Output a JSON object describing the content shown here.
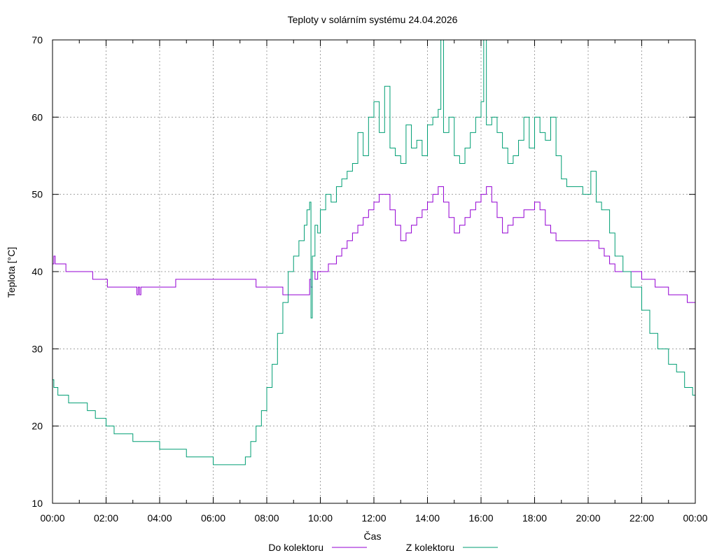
{
  "chart_data": {
    "type": "line",
    "title": "Teploty v solárním systému 24.04.2026",
    "xlabel": "Čas",
    "ylabel": "Teplota [°C]",
    "xlim": [
      0,
      24
    ],
    "ylim": [
      10,
      70
    ],
    "x_ticks": [
      {
        "value": 0,
        "label": "00:00"
      },
      {
        "value": 2,
        "label": "02:00"
      },
      {
        "value": 4,
        "label": "04:00"
      },
      {
        "value": 6,
        "label": "06:00"
      },
      {
        "value": 8,
        "label": "08:00"
      },
      {
        "value": 10,
        "label": "10:00"
      },
      {
        "value": 12,
        "label": "12:00"
      },
      {
        "value": 14,
        "label": "14:00"
      },
      {
        "value": 16,
        "label": "16:00"
      },
      {
        "value": 18,
        "label": "18:00"
      },
      {
        "value": 20,
        "label": "20:00"
      },
      {
        "value": 22,
        "label": "22:00"
      },
      {
        "value": 24,
        "label": "00:00"
      }
    ],
    "y_ticks": [
      10,
      20,
      30,
      40,
      50,
      60,
      70
    ],
    "grid": true,
    "legend_position": "bottom",
    "series": [
      {
        "name": "Do kolektoru",
        "color": "#9400d3",
        "x": [
          0,
          0.05,
          0.1,
          0.4,
          0.5,
          1.4,
          1.5,
          2.0,
          2.05,
          3.1,
          3.15,
          3.2,
          3.25,
          3.3,
          3.35,
          4.5,
          4.6,
          5.0,
          7.5,
          7.6,
          8.5,
          8.6,
          9.5,
          9.6,
          9.65,
          9.7,
          9.8,
          9.9,
          10.0,
          10.3,
          10.6,
          10.8,
          11.0,
          11.2,
          11.4,
          11.6,
          11.8,
          12.0,
          12.2,
          12.4,
          12.6,
          12.8,
          13.0,
          13.2,
          13.4,
          13.6,
          13.8,
          14.0,
          14.2,
          14.4,
          14.6,
          14.8,
          15.0,
          15.2,
          15.4,
          15.6,
          15.8,
          16.0,
          16.2,
          16.4,
          16.6,
          16.8,
          17.0,
          17.2,
          17.4,
          17.6,
          17.8,
          18.0,
          18.2,
          18.4,
          18.6,
          18.8,
          19.0,
          19.5,
          20.0,
          20.2,
          20.4,
          20.6,
          20.8,
          21.0,
          21.5,
          22.0,
          22.5,
          23.0,
          23.5,
          23.7,
          24.0
        ],
        "y": [
          41,
          42,
          41,
          41,
          40,
          40,
          39,
          39,
          38,
          38,
          37,
          38,
          37,
          38,
          38,
          38,
          39,
          39,
          39,
          38,
          38,
          37,
          37,
          39,
          38,
          40,
          39,
          40,
          40,
          41,
          42,
          43,
          44,
          45,
          46,
          47,
          48,
          49,
          50,
          50,
          48,
          46,
          44,
          45,
          46,
          47,
          48,
          49,
          50,
          51,
          49,
          47,
          45,
          46,
          47,
          48,
          49,
          50,
          51,
          49,
          47,
          45,
          46,
          47,
          47,
          48,
          48,
          49,
          48,
          46,
          45,
          44,
          44,
          44,
          44,
          44,
          43,
          42,
          41,
          40,
          40,
          39,
          38,
          37,
          37,
          36,
          36
        ]
      },
      {
        "name": "Z kolektoru",
        "color": "#009e73",
        "x": [
          0,
          0.05,
          0.2,
          0.4,
          0.6,
          1.0,
          1.3,
          1.6,
          1.8,
          2.0,
          2.1,
          2.3,
          2.6,
          3.0,
          3.5,
          4.0,
          4.5,
          5.0,
          5.2,
          5.5,
          6.0,
          6.5,
          7.0,
          7.2,
          7.4,
          7.6,
          7.8,
          8.0,
          8.2,
          8.4,
          8.6,
          8.8,
          9.0,
          9.2,
          9.4,
          9.5,
          9.6,
          9.65,
          9.7,
          9.8,
          9.9,
          10.0,
          10.2,
          10.4,
          10.6,
          10.8,
          11.0,
          11.2,
          11.4,
          11.6,
          11.8,
          12.0,
          12.2,
          12.4,
          12.6,
          12.8,
          13.0,
          13.2,
          13.4,
          13.6,
          13.8,
          14.0,
          14.2,
          14.4,
          14.5,
          14.6,
          14.8,
          15.0,
          15.2,
          15.4,
          15.6,
          15.8,
          16.0,
          16.1,
          16.2,
          16.4,
          16.6,
          16.8,
          17.0,
          17.2,
          17.4,
          17.6,
          17.8,
          18.0,
          18.2,
          18.4,
          18.6,
          18.8,
          19.0,
          19.2,
          19.5,
          19.8,
          20.0,
          20.1,
          20.3,
          20.5,
          20.8,
          21.0,
          21.3,
          21.6,
          22.0,
          22.3,
          22.6,
          23.0,
          23.3,
          23.6,
          23.9,
          24.0
        ],
        "y": [
          26,
          25,
          24,
          24,
          23,
          23,
          22,
          21,
          21,
          20,
          20,
          19,
          19,
          18,
          18,
          17,
          17,
          16,
          16,
          16,
          15,
          15,
          15,
          16,
          18,
          20,
          22,
          25,
          28,
          32,
          36,
          40,
          42,
          44,
          46,
          48,
          49,
          34,
          42,
          46,
          45,
          48,
          50,
          49,
          51,
          52,
          53,
          54,
          58,
          55,
          60,
          62,
          58,
          64,
          56,
          55,
          54,
          59,
          56,
          57,
          55,
          59,
          60,
          61,
          70,
          58,
          60,
          55,
          54,
          56,
          58,
          60,
          62,
          70,
          59,
          60,
          58,
          56,
          54,
          55,
          57,
          60,
          56,
          60,
          58,
          57,
          60,
          55,
          52,
          51,
          51,
          50,
          50,
          53,
          49,
          48,
          45,
          42,
          40,
          38,
          35,
          32,
          30,
          28,
          27,
          25,
          24,
          23
        ]
      }
    ]
  }
}
